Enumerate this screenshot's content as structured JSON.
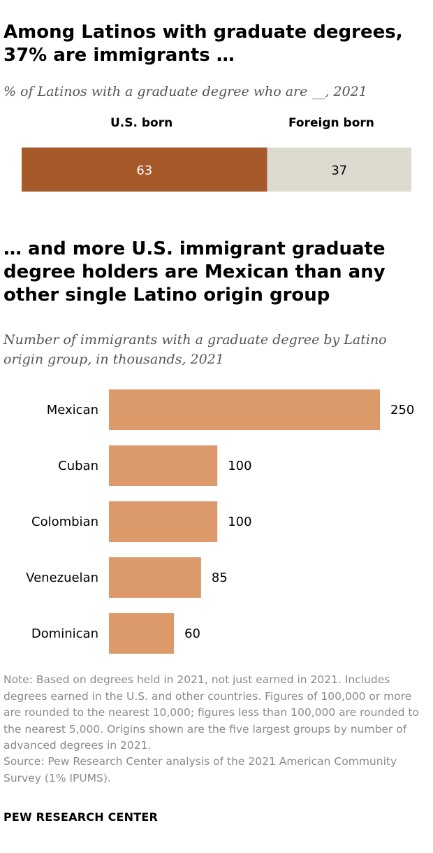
{
  "colors": {
    "us_born": "#a65a2a",
    "foreign_born": "#dddad0",
    "origin_bar": "#dc9a6b"
  },
  "chart_data": [
    {
      "type": "bar",
      "orientation": "horizontal-stacked",
      "title": "Among Latinos with graduate degrees, 37% are immigrants …",
      "subtitle": "% of Latinos with a graduate degree who are __, 2021",
      "series": [
        {
          "name": "U.S. born",
          "values": [
            63
          ]
        },
        {
          "name": "Foreign born",
          "values": [
            37
          ]
        }
      ]
    },
    {
      "type": "bar",
      "orientation": "horizontal",
      "title": "… and more U.S. immigrant graduate degree holders are Mexican than any other single Latino origin group",
      "subtitle": "Number of immigrants with a graduate degree by Latino origin group, in thousands, 2021",
      "categories": [
        "Mexican",
        "Cuban",
        "Colombian",
        "Venezuelan",
        "Dominican"
      ],
      "values": [
        250,
        100,
        100,
        85,
        60
      ],
      "xlim": [
        0,
        250
      ]
    }
  ],
  "footer": {
    "note": "Note: Based on degrees held in 2021, not just earned in 2021. Includes degrees earned in the U.S. and other countries. Figures of 100,000 or more are rounded to the nearest 10,000; figures less than 100,000 are rounded to the nearest 5,000. Origins shown are the five largest groups by number of advanced degrees in 2021.",
    "source": "Source: Pew Research Center analysis of the 2021 American Community Survey (1% IPUMS).",
    "org": "PEW RESEARCH CENTER"
  }
}
